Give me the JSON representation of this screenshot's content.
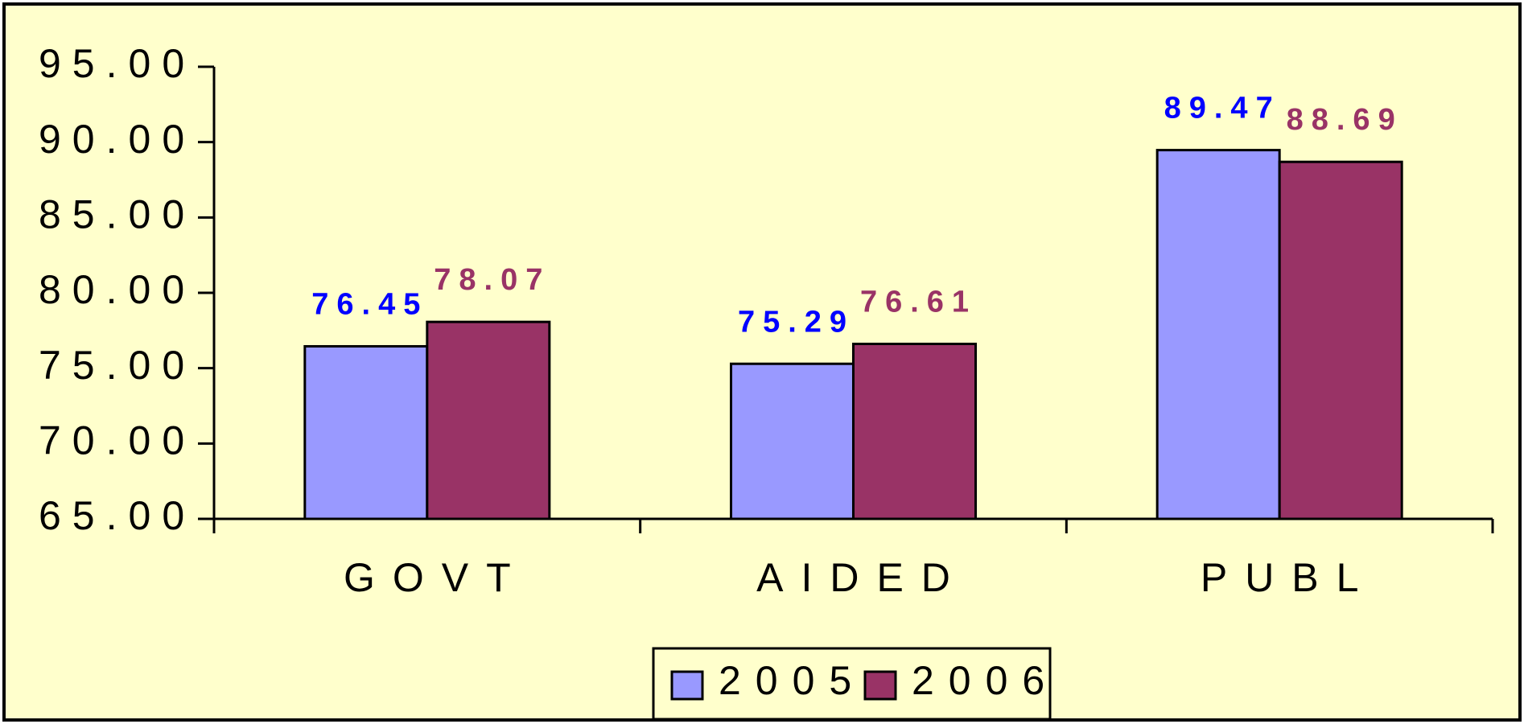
{
  "chart_data": {
    "type": "bar",
    "categories": [
      "GOVT",
      "AIDED",
      "PUBL"
    ],
    "series": [
      {
        "name": "2005",
        "color": "#9999ff",
        "label_color": "#0000ff",
        "values": [
          76.45,
          75.29,
          89.47
        ]
      },
      {
        "name": "2006",
        "color": "#993366",
        "label_color": "#993366",
        "values": [
          78.07,
          76.61,
          88.69
        ]
      }
    ],
    "ylim": [
      65,
      95
    ],
    "yticks": [
      {
        "value": 65,
        "label": "65.00"
      },
      {
        "value": 70,
        "label": "70.00"
      },
      {
        "value": 75,
        "label": "75.00"
      },
      {
        "value": 80,
        "label": "80.00"
      },
      {
        "value": 85,
        "label": "85.00"
      },
      {
        "value": 90,
        "label": "90.00"
      },
      {
        "value": 95,
        "label": "95.00"
      }
    ],
    "legend": "bottom",
    "background": "#ffffcc"
  }
}
